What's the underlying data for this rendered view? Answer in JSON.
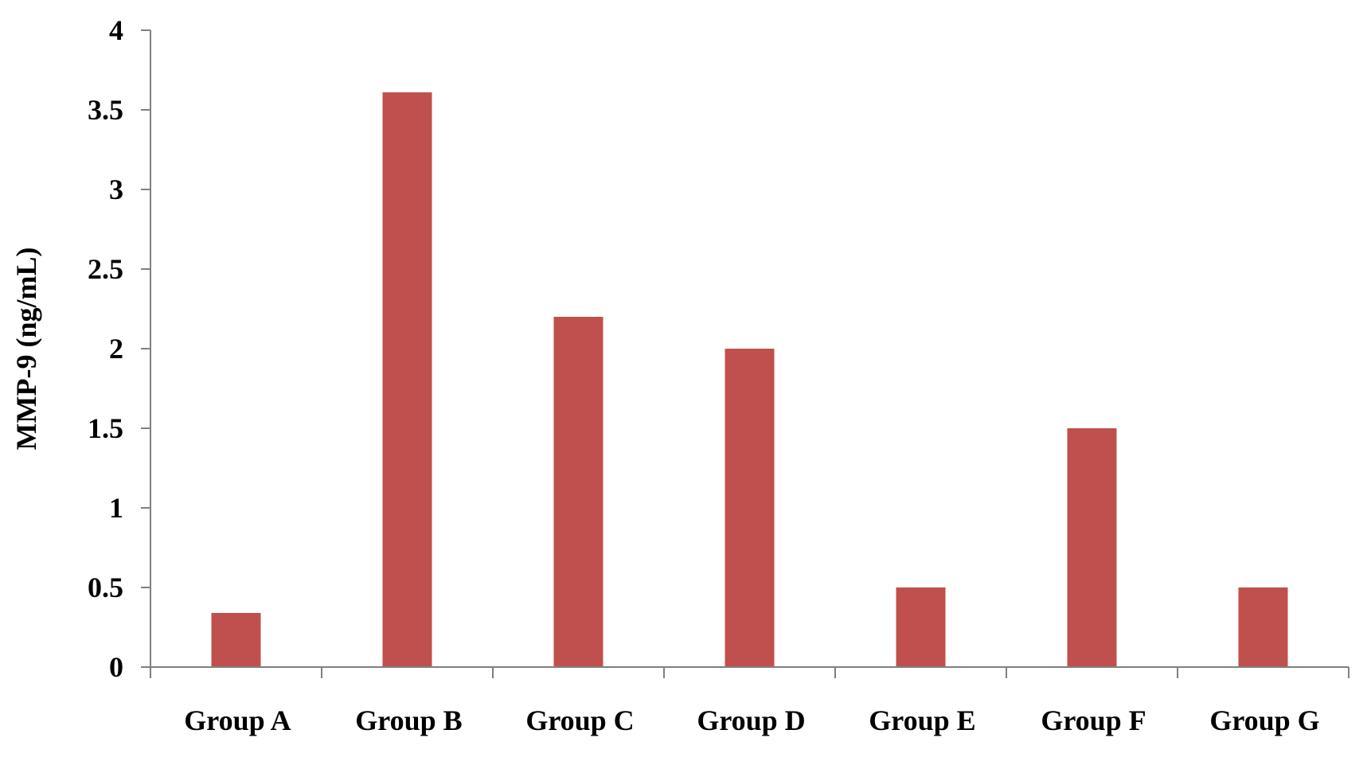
{
  "chart_data": {
    "type": "bar",
    "title": "",
    "xlabel": "",
    "ylabel": "MMP-9 (ng/mL)",
    "categories": [
      "Group A",
      "Group B",
      "Group C",
      "Group D",
      "Group E",
      "Group F",
      "Group G"
    ],
    "values": [
      0.34,
      3.61,
      2.2,
      2.0,
      0.5,
      1.5,
      0.5
    ],
    "ylim": [
      0,
      4
    ],
    "yticks": [
      "0",
      "0.5",
      "1",
      "1.5",
      "2",
      "2.5",
      "3",
      "3.5",
      "4"
    ],
    "grid": false,
    "legend": "none",
    "bar_color": "#C0504D"
  }
}
